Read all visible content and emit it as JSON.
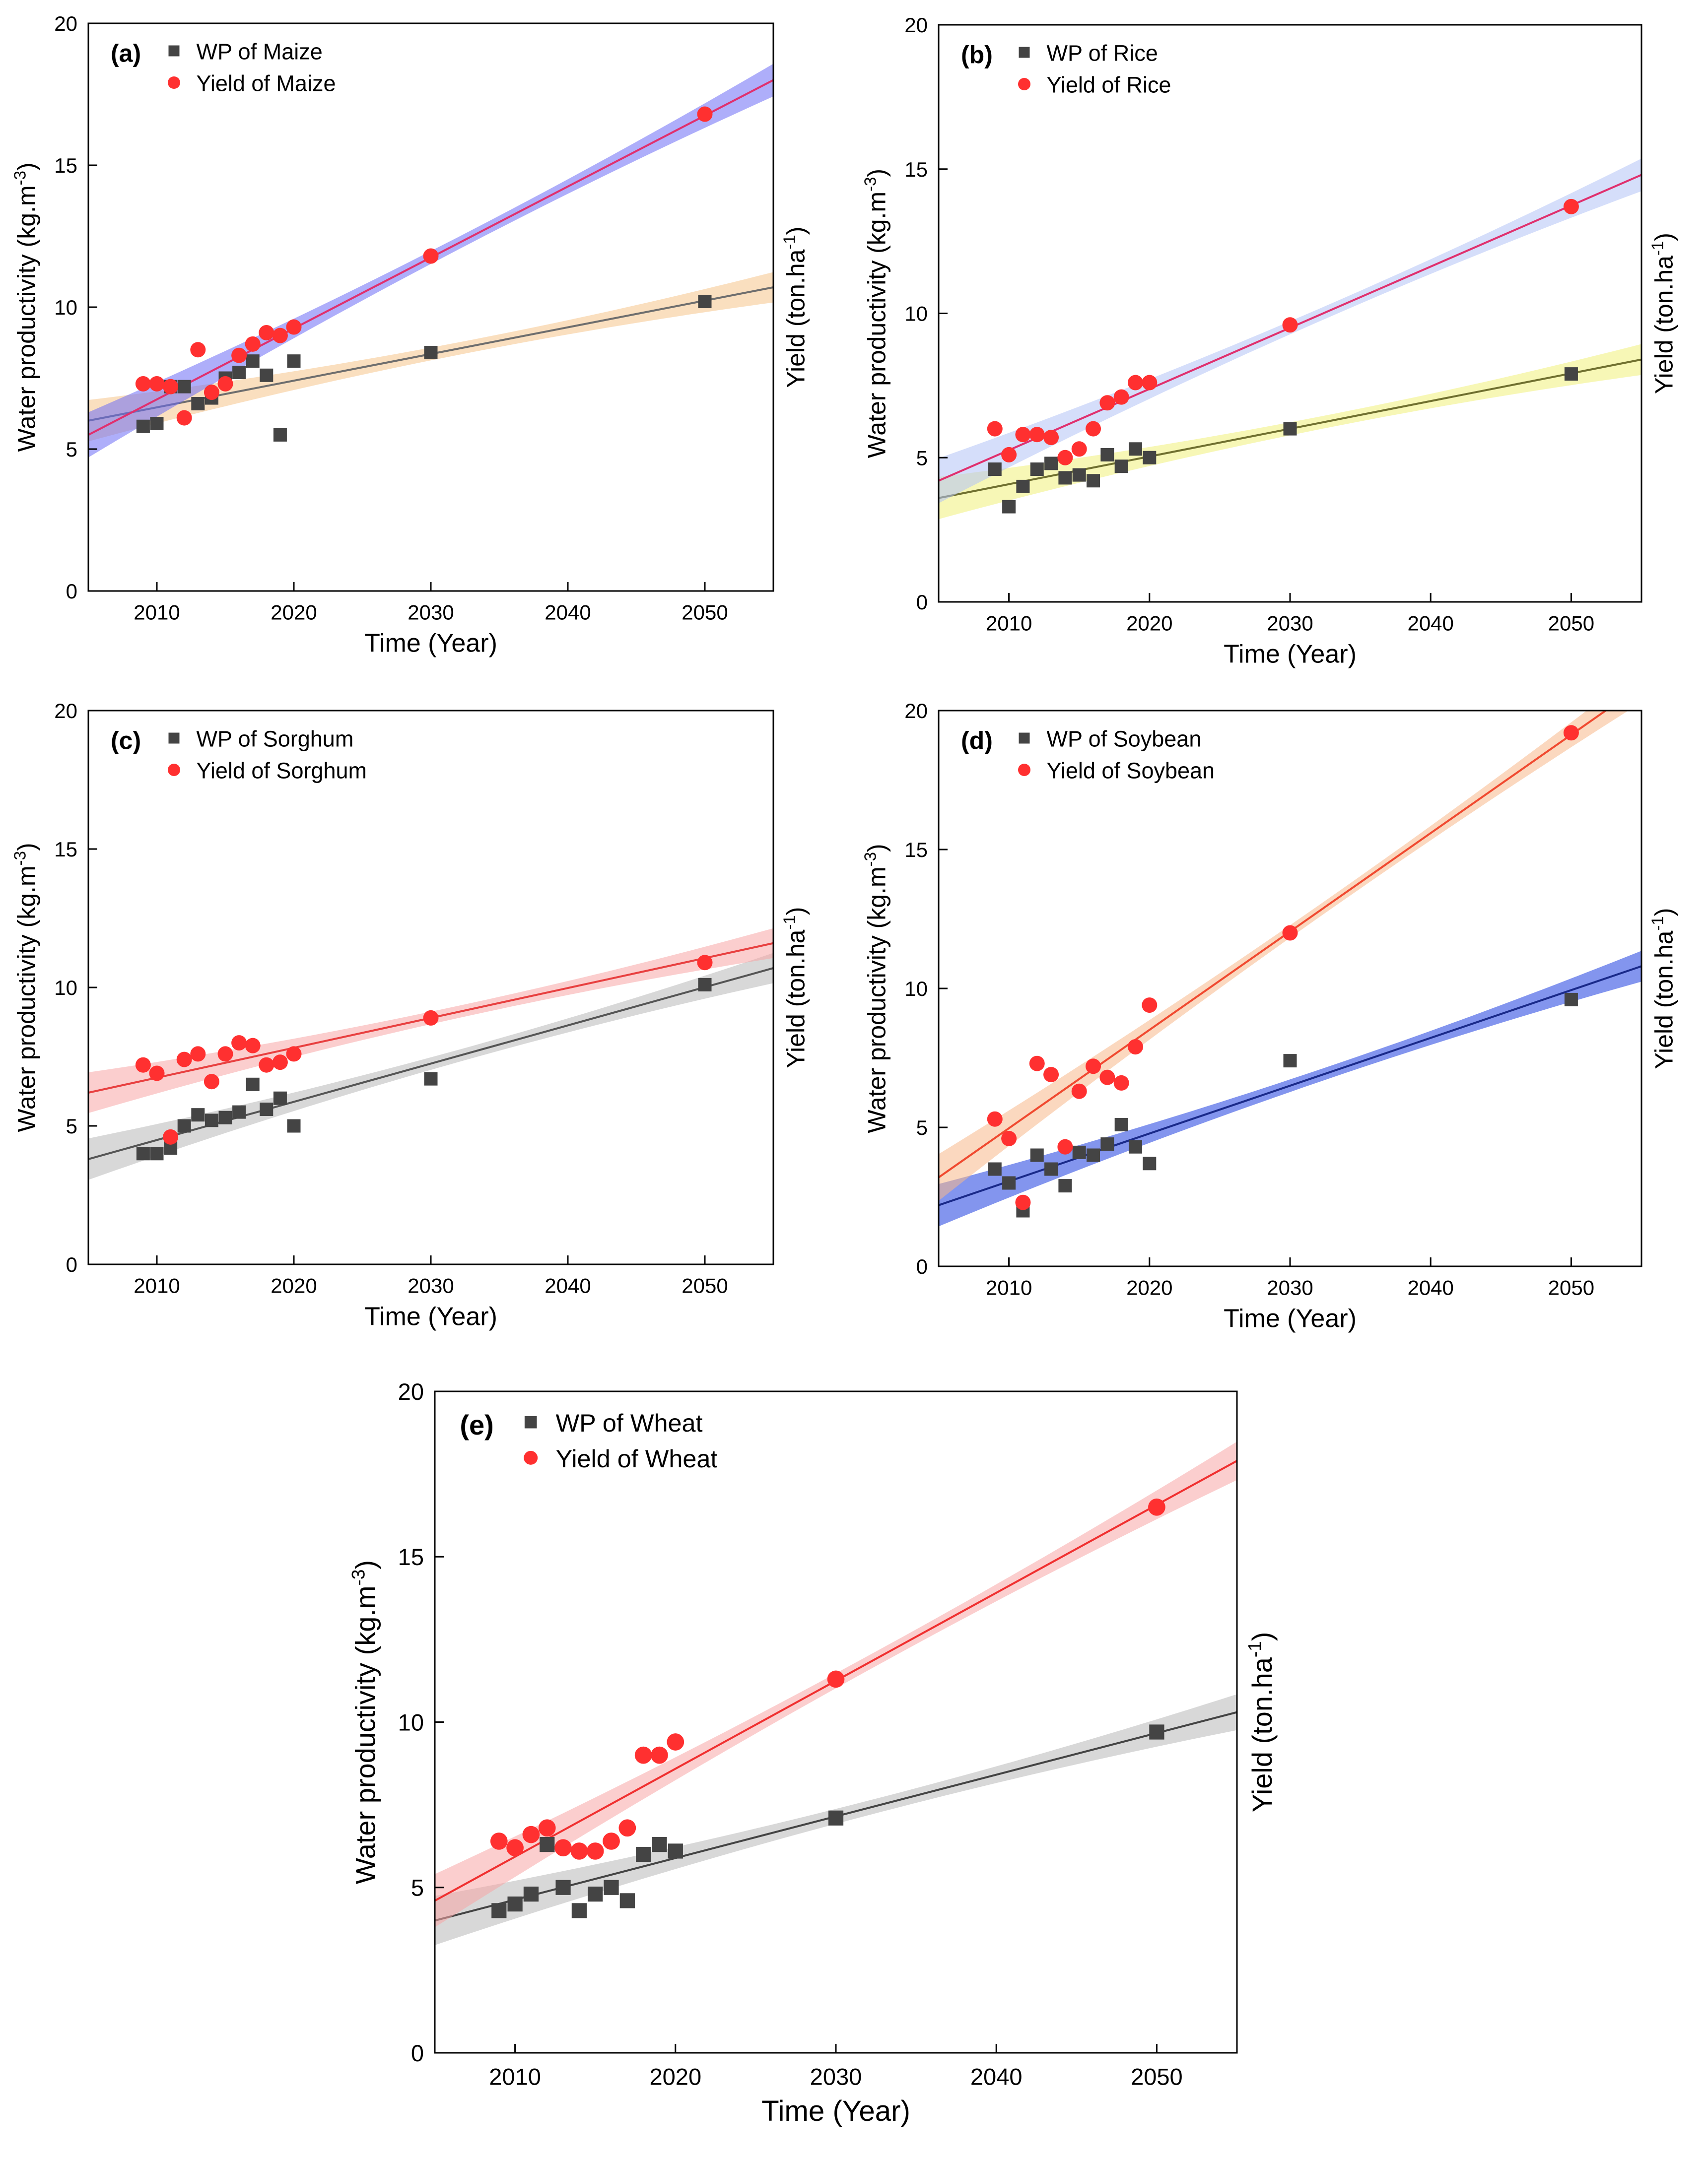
{
  "figure": {
    "background": "#ffffff"
  },
  "chart_data": [
    {
      "type": "scatter",
      "panel": "(a)",
      "xlabel": "Time (Year)",
      "ylabel_left": "Water productivity (kg.m",
      "ylabel_left_sup": "-3",
      "ylabel_left_end": ")",
      "ylabel_right": "Yield (ton.ha",
      "ylabel_right_sup": "-1",
      "ylabel_right_end": ")",
      "xlim": [
        2005,
        2055
      ],
      "ylim": [
        0,
        20
      ],
      "xticks": [
        2010,
        2020,
        2030,
        2040,
        2050
      ],
      "yticks": [
        0,
        5,
        10,
        15,
        20
      ],
      "legend_position": "top-left",
      "series": [
        {
          "name": "WP of Maize",
          "marker": "square",
          "color": "#444444",
          "x": [
            2009,
            2010,
            2011,
            2012,
            2013,
            2014,
            2015,
            2016,
            2017,
            2018,
            2019,
            2020,
            2030,
            2050
          ],
          "y": [
            5.8,
            5.9,
            7.2,
            7.2,
            6.6,
            6.8,
            7.5,
            7.7,
            8.1,
            7.6,
            5.5,
            8.1,
            8.4,
            10.2
          ],
          "fit": [
            [
              2005,
              6.0
            ],
            [
              2055,
              10.7
            ]
          ],
          "band_color": "#f5c48a",
          "line_color": "#6e6e6e"
        },
        {
          "name": "Yield of Maize",
          "marker": "circle",
          "color": "#ff3030",
          "x": [
            2009,
            2010,
            2011,
            2012,
            2013,
            2014,
            2015,
            2016,
            2017,
            2018,
            2019,
            2020,
            2030,
            2050
          ],
          "y": [
            7.3,
            7.3,
            7.2,
            6.1,
            8.5,
            7.0,
            7.3,
            8.3,
            8.7,
            9.1,
            9.0,
            9.3,
            11.8,
            16.8
          ],
          "fit": [
            [
              2005,
              5.5
            ],
            [
              2055,
              18.0
            ]
          ],
          "band_color": "#6b6bf5",
          "line_color": "#e0306e"
        }
      ]
    },
    {
      "type": "scatter",
      "panel": "(b)",
      "xlabel": "Time (Year)",
      "ylabel_left": "Water productivity (kg.m",
      "ylabel_left_sup": "-3",
      "ylabel_left_end": ")",
      "ylabel_right": "Yield (ton.ha",
      "ylabel_right_sup": "-1",
      "ylabel_right_end": ")",
      "xlim": [
        2005,
        2055
      ],
      "ylim": [
        0,
        20
      ],
      "xticks": [
        2010,
        2020,
        2030,
        2040,
        2050
      ],
      "yticks": [
        0,
        5,
        10,
        15,
        20
      ],
      "legend_position": "top-left",
      "series": [
        {
          "name": "WP of Rice",
          "marker": "square",
          "color": "#444444",
          "x": [
            2009,
            2010,
            2011,
            2012,
            2013,
            2014,
            2015,
            2016,
            2017,
            2018,
            2019,
            2020,
            2030,
            2050
          ],
          "y": [
            4.6,
            3.3,
            4.0,
            4.6,
            4.8,
            4.3,
            4.4,
            4.2,
            5.1,
            4.7,
            5.3,
            5.0,
            6.0,
            7.9
          ],
          "fit": [
            [
              2005,
              3.6
            ],
            [
              2055,
              8.4
            ]
          ],
          "band_color": "#f0f07a",
          "line_color": "#707030"
        },
        {
          "name": "Yield of Rice",
          "marker": "circle",
          "color": "#ff3030",
          "x": [
            2009,
            2010,
            2011,
            2012,
            2013,
            2014,
            2015,
            2016,
            2017,
            2018,
            2019,
            2020,
            2030,
            2050
          ],
          "y": [
            6.0,
            5.1,
            5.8,
            5.8,
            5.7,
            5.0,
            5.3,
            6.0,
            6.9,
            7.1,
            7.6,
            7.6,
            9.6,
            13.7
          ],
          "fit": [
            [
              2005,
              4.2
            ],
            [
              2055,
              14.8
            ]
          ],
          "band_color": "#b3c2f5",
          "line_color": "#e0306e"
        }
      ]
    },
    {
      "type": "scatter",
      "panel": "(c)",
      "xlabel": "Time (Year)",
      "ylabel_left": "Water productivity (kg.m",
      "ylabel_left_sup": "-3",
      "ylabel_left_end": ")",
      "ylabel_right": "Yield (ton.ha",
      "ylabel_right_sup": "-1",
      "ylabel_right_end": ")",
      "xlim": [
        2005,
        2055
      ],
      "ylim": [
        0,
        20
      ],
      "xticks": [
        2010,
        2020,
        2030,
        2040,
        2050
      ],
      "yticks": [
        0,
        5,
        10,
        15,
        20
      ],
      "legend_position": "top-left",
      "series": [
        {
          "name": "WP of Sorghum",
          "marker": "square",
          "color": "#444444",
          "x": [
            2009,
            2010,
            2011,
            2012,
            2013,
            2014,
            2015,
            2016,
            2017,
            2018,
            2019,
            2020,
            2030,
            2050
          ],
          "y": [
            4.0,
            4.0,
            4.2,
            5.0,
            5.4,
            5.2,
            5.3,
            5.5,
            6.5,
            5.6,
            6.0,
            5.0,
            6.7,
            10.1
          ],
          "fit": [
            [
              2005,
              3.8
            ],
            [
              2055,
              10.7
            ]
          ],
          "band_color": "#b8b8b8",
          "line_color": "#555555"
        },
        {
          "name": "Yield of Sorghum",
          "marker": "circle",
          "color": "#ff3030",
          "x": [
            2009,
            2010,
            2011,
            2012,
            2013,
            2014,
            2015,
            2016,
            2017,
            2018,
            2019,
            2020,
            2030,
            2050
          ],
          "y": [
            7.2,
            6.9,
            4.6,
            7.4,
            7.6,
            6.6,
            7.6,
            8.0,
            7.9,
            7.2,
            7.3,
            7.6,
            8.9,
            10.9
          ],
          "fit": [
            [
              2005,
              6.2
            ],
            [
              2055,
              11.6
            ]
          ],
          "band_color": "#f7a6a6",
          "line_color": "#e84040"
        }
      ]
    },
    {
      "type": "scatter",
      "panel": "(d)",
      "xlabel": "Time (Year)",
      "ylabel_left": "Water productivity (kg.m",
      "ylabel_left_sup": "-3",
      "ylabel_left_end": ")",
      "ylabel_right": "Yield (ton.ha",
      "ylabel_right_sup": "-1",
      "ylabel_right_end": ")",
      "xlim": [
        2005,
        2055
      ],
      "ylim": [
        0,
        20
      ],
      "xticks": [
        2010,
        2020,
        2030,
        2040,
        2050
      ],
      "yticks": [
        0,
        5,
        10,
        15,
        20
      ],
      "legend_position": "top-left",
      "series": [
        {
          "name": "WP of Soybean",
          "marker": "square",
          "color": "#444444",
          "x": [
            2009,
            2010,
            2011,
            2012,
            2013,
            2014,
            2015,
            2016,
            2017,
            2018,
            2019,
            2020,
            2030,
            2050
          ],
          "y": [
            3.5,
            3.0,
            2.0,
            4.0,
            3.5,
            2.9,
            4.1,
            4.0,
            4.4,
            5.1,
            4.3,
            3.7,
            7.4,
            9.6
          ],
          "fit": [
            [
              2005,
              2.2
            ],
            [
              2055,
              10.8
            ]
          ],
          "band_color": "#1e3ee0",
          "line_color": "#1a2a8a"
        },
        {
          "name": "Yield of Soybean",
          "marker": "circle",
          "color": "#ff3030",
          "x": [
            2009,
            2010,
            2011,
            2012,
            2013,
            2014,
            2015,
            2016,
            2017,
            2018,
            2019,
            2020,
            2030,
            2050
          ],
          "y": [
            5.3,
            4.6,
            2.3,
            7.3,
            6.9,
            4.3,
            6.3,
            7.2,
            6.8,
            6.6,
            7.9,
            9.4,
            12.0,
            19.2
          ],
          "fit": [
            [
              2005,
              3.2
            ],
            [
              2055,
              20.9
            ]
          ],
          "band_color": "#f7b88a",
          "line_color": "#f04a30"
        }
      ]
    },
    {
      "type": "scatter",
      "panel": "(e)",
      "xlabel": "Time (Year)",
      "ylabel_left": "Water productivity (kg.m",
      "ylabel_left_sup": "-3",
      "ylabel_left_end": ")",
      "ylabel_right": "Yield (ton.ha",
      "ylabel_right_sup": "-1",
      "ylabel_right_end": ")",
      "xlim": [
        2005,
        2055
      ],
      "ylim": [
        0,
        20
      ],
      "xticks": [
        2010,
        2020,
        2030,
        2040,
        2050
      ],
      "yticks": [
        0,
        5,
        10,
        15,
        20
      ],
      "legend_position": "top-left",
      "series": [
        {
          "name": "WP of Wheat",
          "marker": "square",
          "color": "#444444",
          "x": [
            2009,
            2010,
            2011,
            2012,
            2013,
            2014,
            2015,
            2016,
            2017,
            2018,
            2019,
            2020,
            2030,
            2050
          ],
          "y": [
            4.3,
            4.5,
            4.8,
            6.3,
            5.0,
            4.3,
            4.8,
            5.0,
            4.6,
            6.0,
            6.3,
            6.1,
            7.1,
            9.7
          ],
          "fit": [
            [
              2005,
              4.0
            ],
            [
              2055,
              10.3
            ]
          ],
          "band_color": "#b8b8b8",
          "line_color": "#444444"
        },
        {
          "name": "Yield of Wheat",
          "marker": "circle",
          "color": "#ff3030",
          "x": [
            2009,
            2010,
            2011,
            2012,
            2013,
            2014,
            2015,
            2016,
            2017,
            2018,
            2019,
            2020,
            2030,
            2050
          ],
          "y": [
            6.4,
            6.2,
            6.6,
            6.8,
            6.2,
            6.1,
            6.1,
            6.4,
            6.8,
            9.0,
            9.0,
            9.4,
            11.3,
            16.5
          ],
          "fit": [
            [
              2005,
              4.6
            ],
            [
              2055,
              17.9
            ]
          ],
          "band_color": "#f7a6a6",
          "line_color": "#f03030"
        }
      ]
    }
  ]
}
